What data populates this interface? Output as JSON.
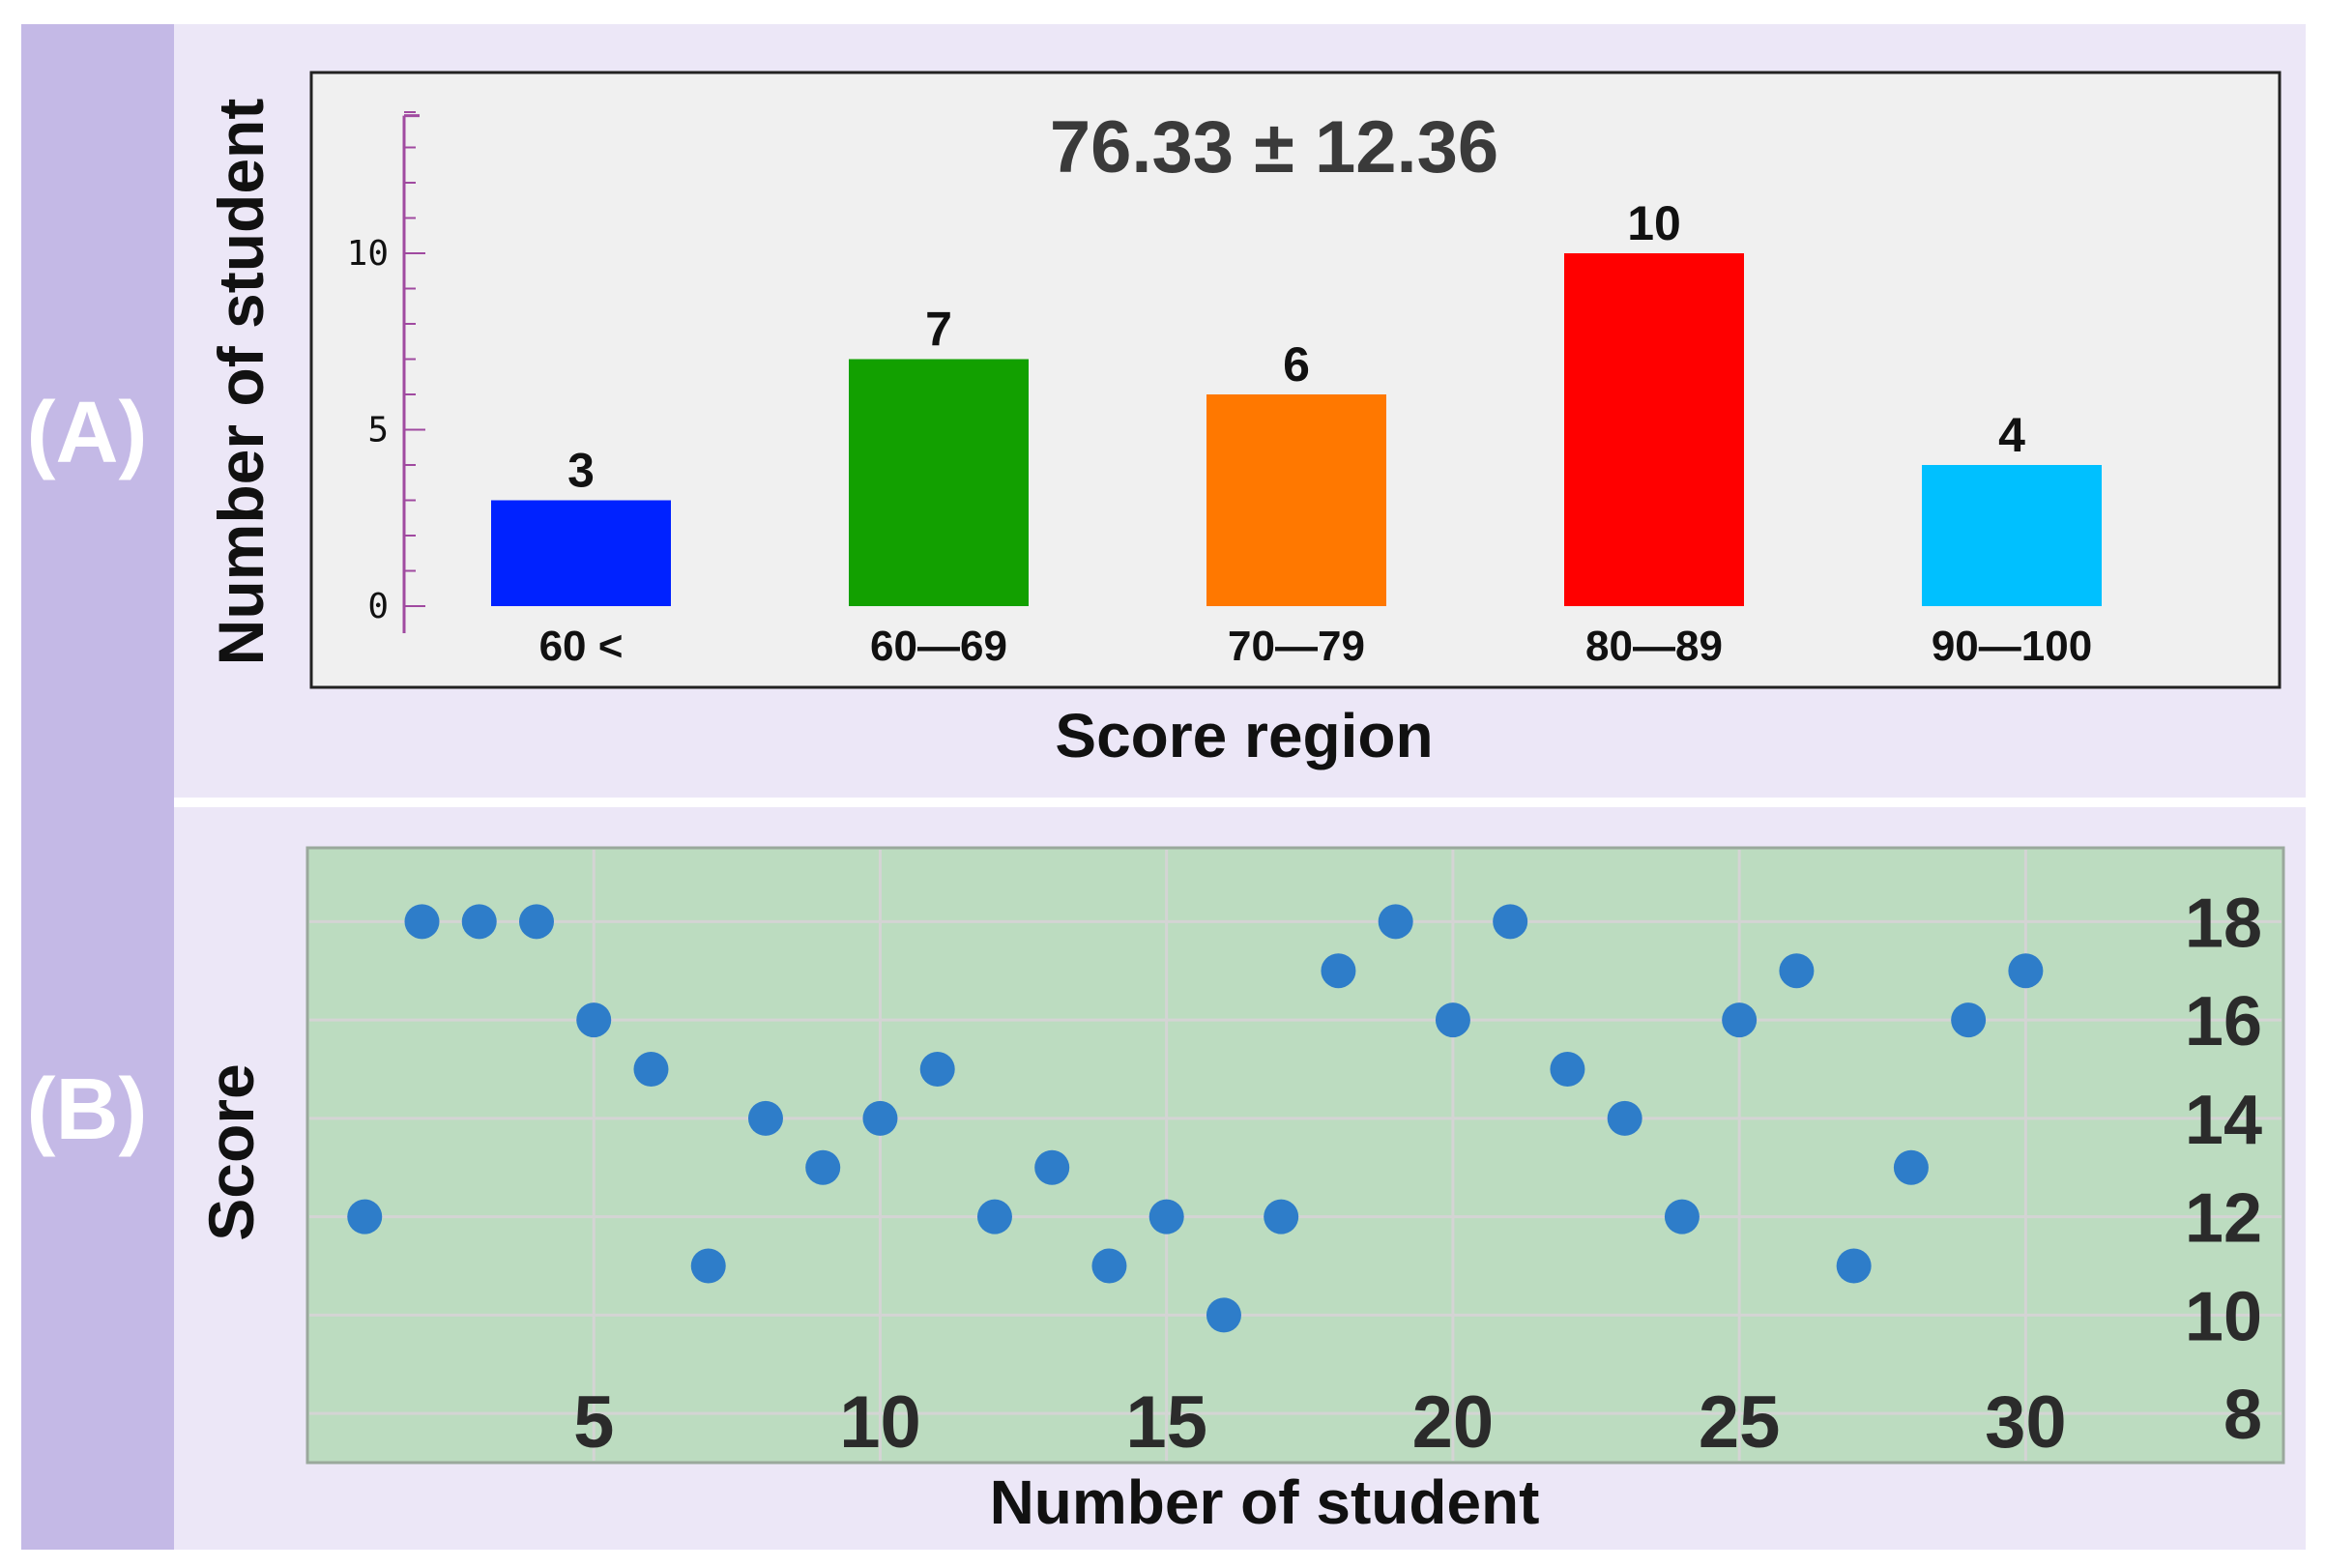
{
  "panels": {
    "a": {
      "label": "(A)"
    },
    "b": {
      "label": "(B)"
    }
  },
  "colors": {
    "left_strip": "#c4b9e6",
    "panel_bg": "#ece7f7",
    "chart_a_bg": "#f0f0f0",
    "chart_b_bg": "#bcdcc0",
    "axis_magenta": "#a04aa0",
    "point_blue": "#2e7dc9",
    "grid": "#d4d4d4"
  },
  "chart_data": [
    {
      "type": "bar",
      "title": "76.33 ± 12.36",
      "xlabel": "Score region",
      "ylabel": "Number of student",
      "categories": [
        "60 <",
        "60—69",
        "70—79",
        "80—89",
        "90—100"
      ],
      "values": [
        3,
        7,
        6,
        10,
        4
      ],
      "bar_colors": [
        "#0022ff",
        "#12a000",
        "#ff7800",
        "#ff0000",
        "#00c0ff"
      ],
      "data_labels": [
        "3",
        "7",
        "6",
        "10",
        "4"
      ],
      "ylim": [
        0,
        14
      ],
      "yticks": [
        0,
        5,
        10
      ],
      "grid": false
    },
    {
      "type": "scatter",
      "xlabel": "Number of student",
      "ylabel": "Score",
      "x": [
        1,
        2,
        3,
        4,
        5,
        6,
        7,
        8,
        9,
        10,
        11,
        12,
        13,
        14,
        15,
        16,
        17,
        18,
        19,
        20,
        21,
        22,
        23,
        24,
        25,
        26,
        27,
        28,
        29,
        30
      ],
      "y": [
        12,
        18,
        18,
        18,
        16,
        15,
        11,
        14,
        13,
        14,
        15,
        12,
        13,
        11,
        12,
        10,
        12,
        17,
        18,
        16,
        18,
        15,
        14,
        12,
        16,
        17,
        11,
        13,
        16,
        17
      ],
      "xticks": [
        5,
        10,
        15,
        20,
        25,
        30
      ],
      "yticks": [
        8,
        10,
        12,
        14,
        16,
        18
      ],
      "xlim": [
        0,
        34.5
      ],
      "ylim": [
        7,
        19.5
      ],
      "grid": true,
      "y_axis_position": "right"
    }
  ]
}
